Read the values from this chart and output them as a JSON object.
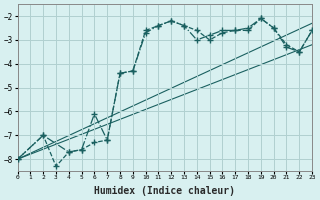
{
  "title": "",
  "xlabel": "Humidex (Indice chaleur)",
  "ylabel": "",
  "bg_color": "#d8f0f0",
  "grid_color": "#b0d0d0",
  "line_color": "#1a6060",
  "xlim": [
    0,
    23
  ],
  "ylim": [
    -8.5,
    -1.5
  ],
  "xticks": [
    0,
    1,
    2,
    3,
    4,
    5,
    6,
    7,
    8,
    9,
    10,
    11,
    12,
    13,
    14,
    15,
    16,
    17,
    18,
    19,
    20,
    21,
    22,
    23
  ],
  "yticks": [
    -8,
    -7,
    -6,
    -5,
    -4,
    -3,
    -2
  ],
  "line1_x": [
    0,
    2,
    3,
    4,
    5,
    6,
    7,
    8,
    9,
    10,
    11,
    12,
    13,
    14,
    15,
    16,
    17,
    18,
    19,
    20,
    21,
    22,
    23
  ],
  "line1_y": [
    -8.0,
    -7.0,
    -8.3,
    -7.7,
    -7.6,
    -7.3,
    -7.2,
    -4.4,
    -4.3,
    -2.6,
    -2.4,
    -2.2,
    -2.4,
    -2.6,
    -3.0,
    -2.7,
    -2.6,
    -2.6,
    -2.1,
    -2.5,
    -3.2,
    -3.5,
    -2.6
  ],
  "line2_x": [
    0,
    2,
    4,
    5,
    6,
    7,
    8,
    9,
    10,
    11,
    12,
    13,
    14,
    15,
    16,
    17,
    18,
    19,
    20,
    21,
    22,
    23
  ],
  "line2_y": [
    -8.0,
    -7.0,
    -7.7,
    -7.6,
    -6.1,
    -7.2,
    -4.4,
    -4.3,
    -2.7,
    -2.4,
    -2.2,
    -2.4,
    -3.0,
    -2.8,
    -2.6,
    -2.6,
    -2.5,
    -2.1,
    -2.5,
    -3.3,
    -3.5,
    -2.6
  ],
  "line3_x": [
    0,
    23
  ],
  "line3_y": [
    -8.0,
    -2.3
  ],
  "line4_x": [
    0,
    23
  ],
  "line4_y": [
    -8.0,
    -3.2
  ]
}
